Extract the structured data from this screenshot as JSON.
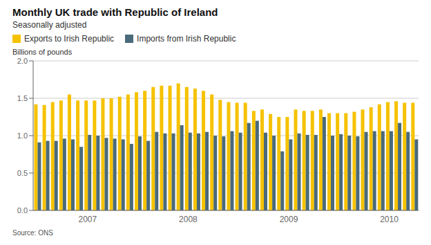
{
  "chart_data": {
    "type": "bar",
    "title": "Monthly UK trade with Republic of Ireland",
    "subtitle": "Seasonally adjusted",
    "ylabel": "Billions of pounds",
    "annotations": [
      "Source: ONS"
    ],
    "categories": [
      null,
      null,
      null,
      null,
      null,
      null,
      "2007",
      null,
      null,
      null,
      null,
      null,
      null,
      null,
      null,
      null,
      null,
      null,
      "2008",
      null,
      null,
      null,
      null,
      null,
      null,
      null,
      null,
      null,
      null,
      null,
      "2009",
      null,
      null,
      null,
      null,
      null,
      null,
      null,
      null,
      null,
      null,
      null,
      "2010",
      null,
      null,
      null
    ],
    "series": [
      {
        "name": "Exports to Irish Republic",
        "color": "#F5C200",
        "values": [
          1.42,
          1.41,
          1.45,
          1.47,
          1.55,
          1.47,
          1.47,
          1.47,
          1.5,
          1.5,
          1.52,
          1.55,
          1.58,
          1.6,
          1.65,
          1.67,
          1.67,
          1.7,
          1.65,
          1.63,
          1.6,
          1.55,
          1.48,
          1.45,
          1.44,
          1.44,
          1.33,
          1.35,
          1.29,
          1.25,
          1.25,
          1.35,
          1.33,
          1.33,
          1.35,
          1.3,
          1.3,
          1.3,
          1.32,
          1.35,
          1.38,
          1.42,
          1.45,
          1.46,
          1.44,
          1.44
        ]
      },
      {
        "name": "Imports from Irish Republic",
        "color": "#4A6A7A",
        "values": [
          0.91,
          0.93,
          0.93,
          0.96,
          0.95,
          0.85,
          1.01,
          1.0,
          0.97,
          0.96,
          0.95,
          0.89,
          0.99,
          0.93,
          1.05,
          1.03,
          1.03,
          1.14,
          1.04,
          1.03,
          1.05,
          1.0,
          0.99,
          1.06,
          1.04,
          1.17,
          1.2,
          1.04,
          1.0,
          0.79,
          0.95,
          1.03,
          1.01,
          1.01,
          1.25,
          1.0,
          1.02,
          1.0,
          0.99,
          1.05,
          1.06,
          1.06,
          1.06,
          1.17,
          1.05,
          0.95
        ]
      }
    ],
    "ylim": [
      0.0,
      2.0
    ],
    "yticks": [
      {
        "value": 0.0,
        "label": "0.0"
      },
      0.5,
      {
        "value": 1.0,
        "label": "1.0"
      },
      1.5,
      {
        "value": 2.0,
        "label": "2.0"
      }
    ],
    "grid": true,
    "legend": "upper left"
  }
}
